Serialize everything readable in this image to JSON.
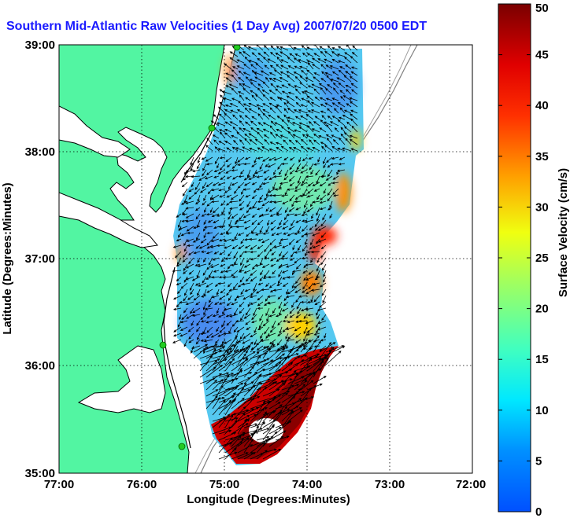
{
  "title": "Southern Mid-Atlantic Raw Velocities (1 Day Avg) 2007/07/20 0500 EDT",
  "map": {
    "x_label": "Longitude (Degrees:Minutes)",
    "y_label": "Latitude (Degrees:Minutes)",
    "x_ticks": [
      "77:00",
      "76:00",
      "75:00",
      "74:00",
      "73:00",
      "72:00"
    ],
    "y_ticks": [
      "39:00",
      "38:00",
      "37:00",
      "36:00",
      "35:00"
    ],
    "land_color": "#52f5a2",
    "water_color": "#ffffff",
    "coastline_color": "#000000",
    "station_color": "#22cc22",
    "arrow_color": "#000000",
    "stations": [
      "station-1",
      "station-2",
      "station-3",
      "station-4"
    ]
  },
  "colorbar": {
    "label": "Surface Velocity (cm/s)",
    "ticks": [
      "50",
      "45",
      "40",
      "35",
      "30",
      "25",
      "20",
      "15",
      "10",
      "5",
      "0"
    ],
    "min": 0,
    "max": 50,
    "colormap": "jet"
  }
}
